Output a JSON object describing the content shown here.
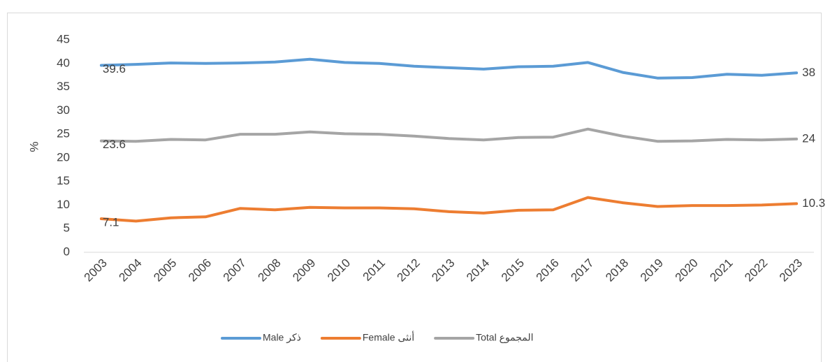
{
  "chart_data": {
    "type": "line",
    "categories": [
      "2003",
      "2004",
      "2005",
      "2006",
      "2007",
      "2008",
      "2009",
      "2010",
      "2011",
      "2012",
      "2013",
      "2014",
      "2015",
      "2016",
      "2017",
      "2018",
      "2019",
      "2020",
      "2021",
      "2022",
      "2023"
    ],
    "y_label": "%",
    "ylim": [
      0,
      45
    ],
    "yticks": [
      0,
      5,
      10,
      15,
      20,
      25,
      30,
      35,
      40,
      45
    ],
    "grid": false,
    "legend": "bottom",
    "series": [
      {
        "name": "Male ذكر",
        "color": "#5b9bd5",
        "values": [
          39.6,
          39.8,
          40.1,
          40.0,
          40.1,
          40.3,
          40.9,
          40.2,
          40.0,
          39.4,
          39.1,
          38.8,
          39.3,
          39.4,
          40.2,
          38.1,
          36.9,
          37.0,
          37.7,
          37.5,
          38
        ],
        "value_labels": [
          "39.6",
          null,
          null,
          null,
          null,
          null,
          null,
          null,
          null,
          null,
          null,
          null,
          null,
          null,
          null,
          null,
          null,
          null,
          null,
          null,
          "38"
        ]
      },
      {
        "name": "Female أنثى",
        "color": "#ed7d31",
        "values": [
          7.1,
          6.6,
          7.3,
          7.5,
          9.3,
          9.0,
          9.5,
          9.4,
          9.4,
          9.2,
          8.6,
          8.3,
          8.9,
          9.0,
          11.6,
          10.5,
          9.7,
          9.9,
          9.9,
          10.0,
          10.3
        ],
        "value_labels": [
          "7.1",
          null,
          null,
          null,
          null,
          null,
          null,
          null,
          null,
          null,
          null,
          null,
          null,
          null,
          null,
          null,
          null,
          null,
          null,
          null,
          "10.3"
        ]
      },
      {
        "name": "Total المجموع",
        "color": "#a5a5a5",
        "values": [
          23.6,
          23.5,
          23.9,
          23.8,
          25.0,
          25.0,
          25.5,
          25.1,
          25.0,
          24.6,
          24.1,
          23.8,
          24.3,
          24.4,
          26.1,
          24.6,
          23.5,
          23.6,
          23.9,
          23.8,
          24
        ],
        "value_labels": [
          "23.6",
          null,
          null,
          null,
          null,
          null,
          null,
          null,
          null,
          null,
          null,
          null,
          null,
          null,
          null,
          null,
          null,
          null,
          null,
          null,
          "24"
        ]
      }
    ]
  }
}
